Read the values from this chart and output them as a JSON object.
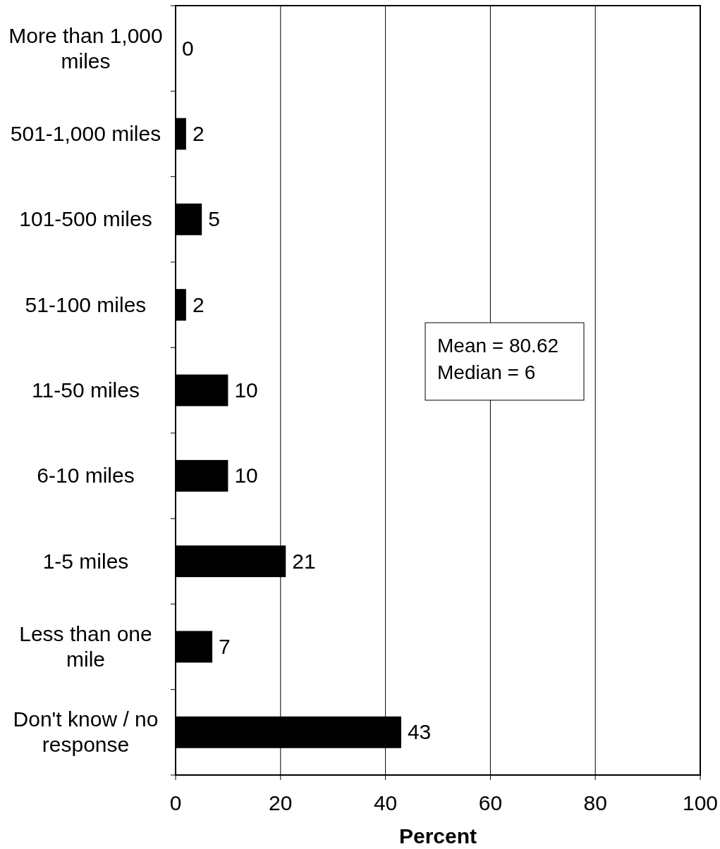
{
  "chart_data": {
    "type": "bar",
    "orientation": "horizontal",
    "categories": [
      "More than 1,000 miles",
      "501-1,000 miles",
      "101-500 miles",
      "51-100 miles",
      "11-50 miles",
      "6-10 miles",
      "1-5 miles",
      "Less than one mile",
      "Don't know / no response"
    ],
    "values": [
      0,
      2,
      5,
      2,
      10,
      10,
      21,
      7,
      43
    ],
    "color": "#000000",
    "xlabel": "Percent",
    "xlim": [
      0,
      100
    ],
    "xticks": [
      0,
      20,
      40,
      60,
      80,
      100
    ],
    "grid": "x",
    "data_labels": true,
    "annotations": [
      "Mean = 80.62",
      "Median = 6"
    ]
  }
}
